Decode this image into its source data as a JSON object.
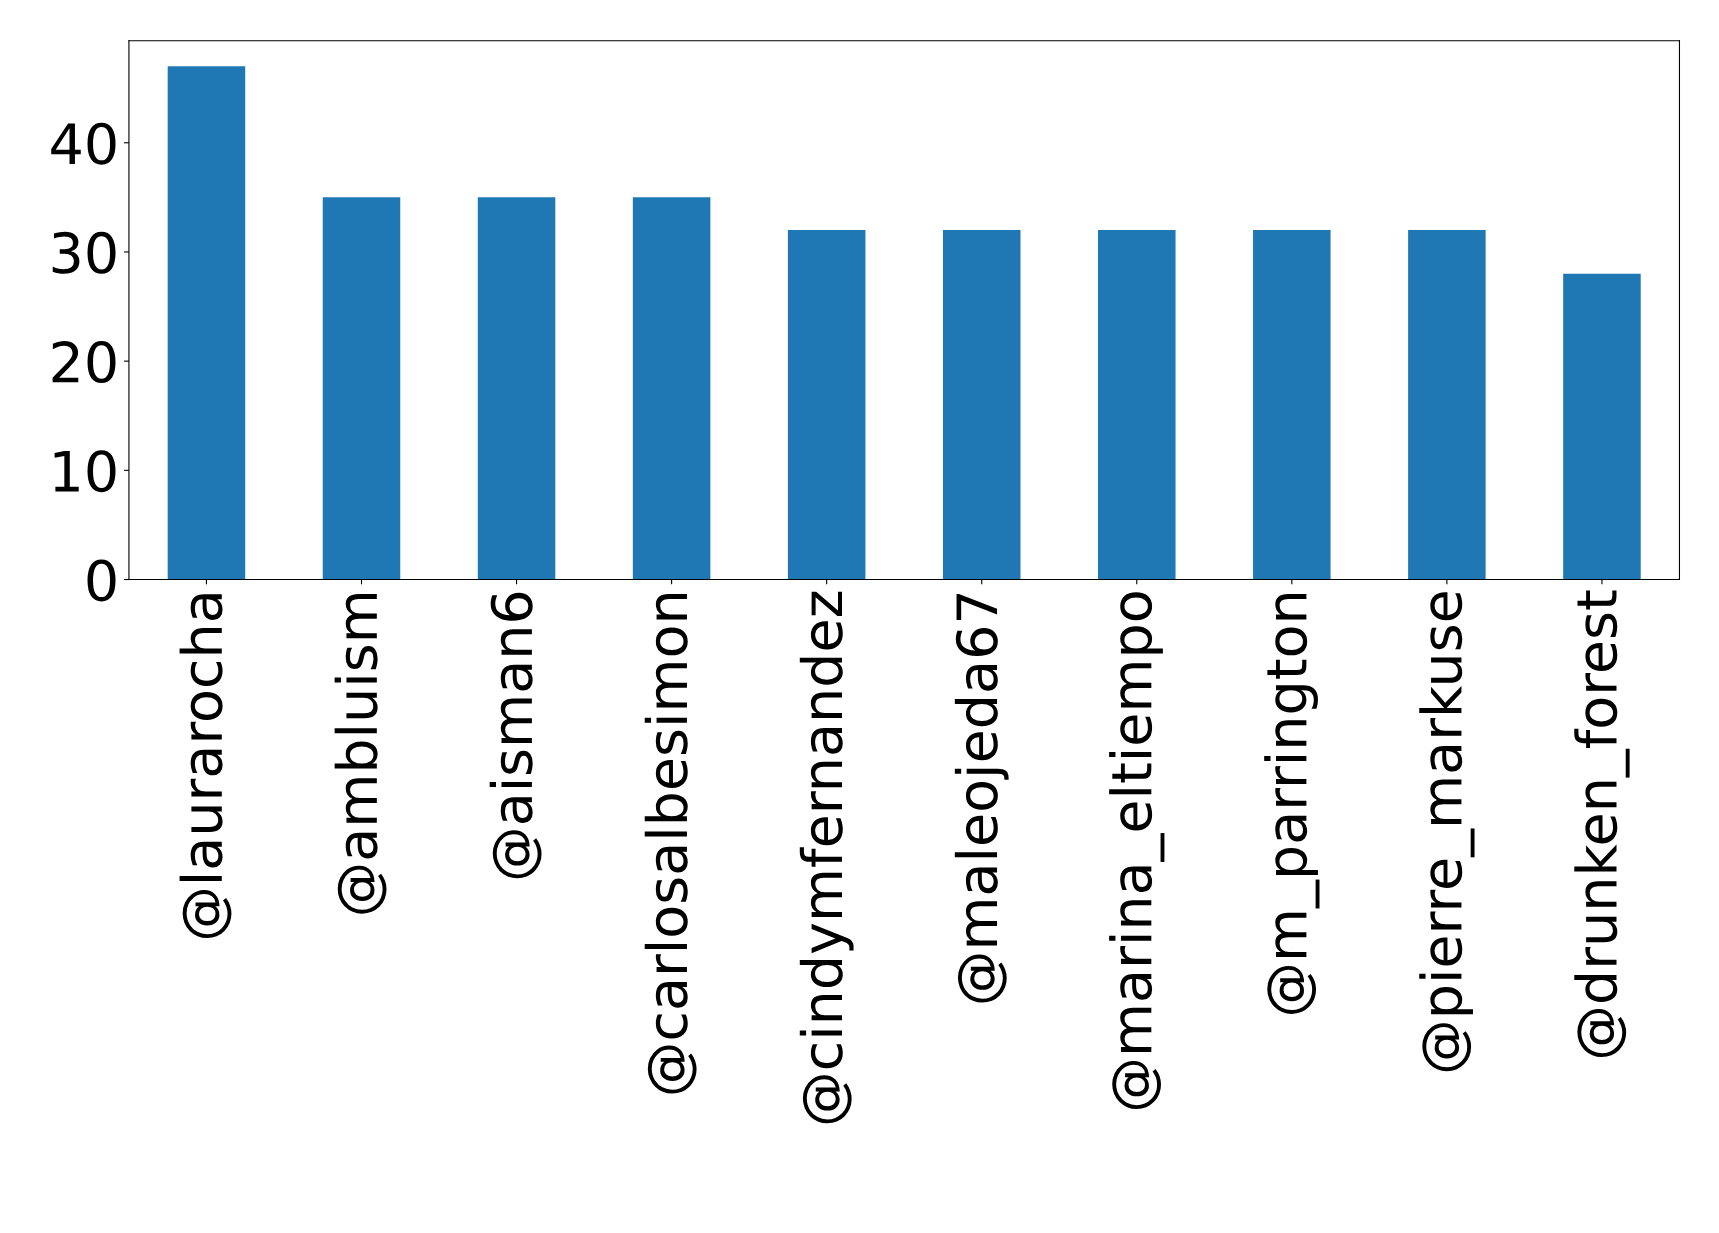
{
  "chart_data": {
    "type": "bar",
    "categories": [
      "@laurarocha",
      "@ambluism",
      "@aisman6",
      "@carlosalbesimon",
      "@cindymfernandez",
      "@maleojeda67",
      "@marina_eltiempo",
      "@m_parrington",
      "@pierre_markuse",
      "@drunken_forest"
    ],
    "values": [
      47,
      35,
      35,
      35,
      32,
      32,
      32,
      32,
      32,
      28
    ],
    "color": "#1f77b4",
    "ylim": [
      0,
      49.35
    ],
    "yticks": [
      0,
      10,
      20,
      30,
      40
    ],
    "grid": false,
    "legend": false
  }
}
